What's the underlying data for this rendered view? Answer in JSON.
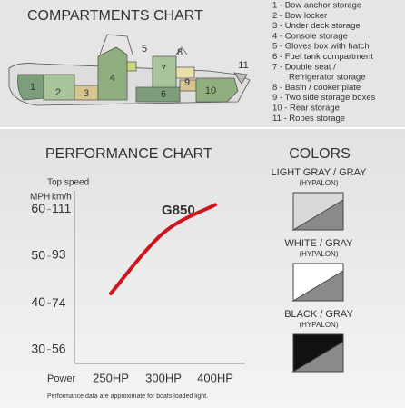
{
  "compartments": {
    "title": "COMPARTMENTS CHART",
    "legend": [
      "1 - Bow anchor storage",
      "2 - Bow locker",
      "3 - Under deck storage",
      "4 - Console storage",
      "5 - Gloves box with hatch",
      "6 - Fuel tank compartment",
      "7 - Double seat /",
      "Refrigerator storage",
      "8 - Basin / cooker plate",
      "9 - Two side storage boxes",
      "10 - Rear storage",
      "11 - Ropes storage"
    ],
    "boat_labels": [
      "1",
      "2",
      "3",
      "4",
      "5",
      "6",
      "7",
      "8",
      "9",
      "10",
      "11"
    ]
  },
  "chart_data": {
    "type": "line",
    "title": "PERFORMANCE CHART",
    "model": "G850",
    "y_caption": "Top speed",
    "ylabel": "MPH",
    "y2label": "km/h",
    "xlabel": "Power",
    "categories": [
      "250HP",
      "300HP",
      "400HP"
    ],
    "series": [
      {
        "name": "G850",
        "color": "#d0141e",
        "values": [
          42,
          55,
          61
        ]
      }
    ],
    "ylim": [
      27,
      64
    ],
    "yticks": [
      30,
      40,
      50,
      60
    ],
    "y2lim": [
      50.5,
      118.3
    ],
    "y2ticks": [
      56,
      74,
      93,
      111
    ],
    "note": "Performance data are approximate for boats loaded light."
  },
  "colors": {
    "title": "COLORS",
    "options": [
      {
        "name": "LIGHT GRAY / GRAY",
        "material": "(HYPALON)",
        "top": "#d9d9d9",
        "bottom": "#8a8a8a"
      },
      {
        "name": "WHITE / GRAY",
        "material": "(HYPALON)",
        "top": "#ffffff",
        "bottom": "#8a8a8a"
      },
      {
        "name": "BLACK / GRAY",
        "material": "(HYPALON)",
        "top": "#111111",
        "bottom": "#8a8a8a"
      }
    ]
  }
}
